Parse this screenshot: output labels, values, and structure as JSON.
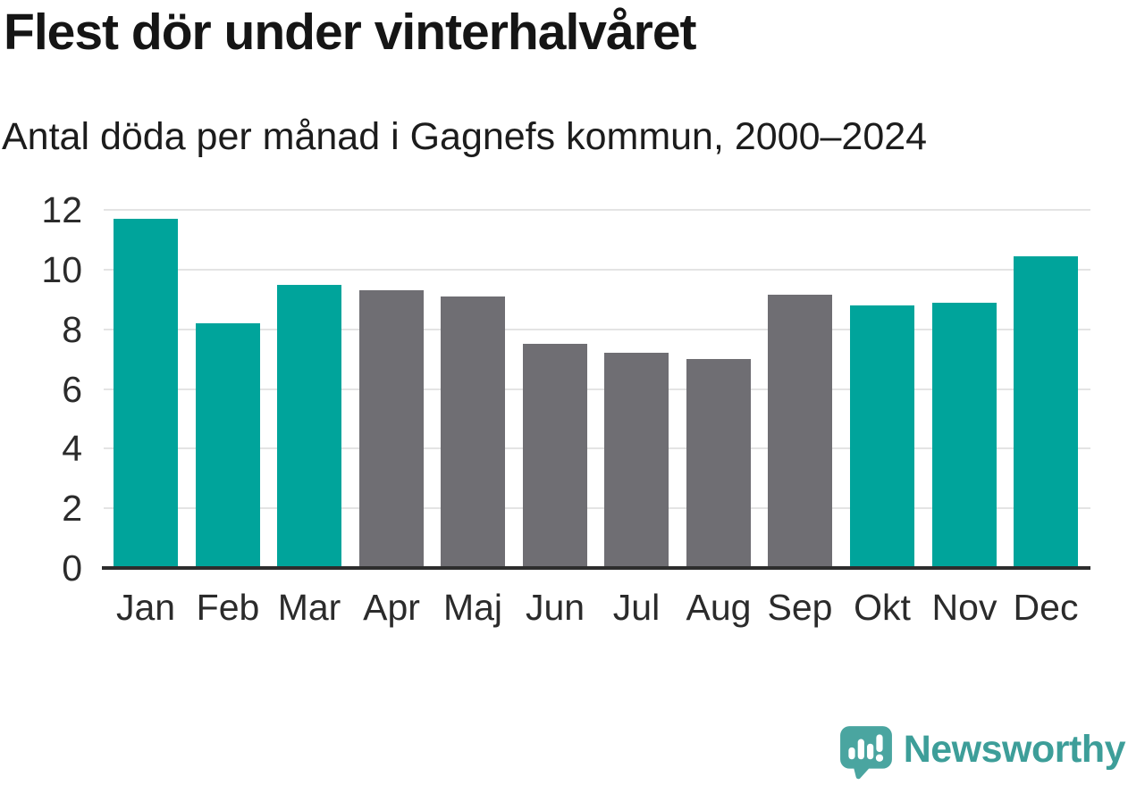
{
  "header": {
    "title": "Flest dör under vinterhalvåret",
    "subtitle": "Antal döda per månad i Gagnefs kommun, 2000–2024"
  },
  "chart_data": {
    "type": "bar",
    "title": "Flest dör under vinterhalvåret",
    "subtitle": "Antal döda per månad i Gagnefs kommun, 2000–2024",
    "categories": [
      "Jan",
      "Feb",
      "Mar",
      "Apr",
      "Maj",
      "Jun",
      "Jul",
      "Aug",
      "Sep",
      "Okt",
      "Nov",
      "Dec"
    ],
    "values": [
      11.7,
      8.2,
      9.5,
      9.3,
      9.1,
      7.5,
      7.2,
      7.0,
      9.15,
      8.8,
      8.9,
      10.45
    ],
    "highlighted_categories": [
      "Jan",
      "Feb",
      "Mar",
      "Okt",
      "Nov",
      "Dec"
    ],
    "xlabel": "",
    "ylabel": "",
    "ylim": [
      0,
      12
    ],
    "yticks": [
      0,
      2,
      4,
      6,
      8,
      10,
      12
    ],
    "grid": "horizontal",
    "legend": "none",
    "colors": {
      "highlight_bar": "#00a49b",
      "default_bar": "#6f6e73",
      "gridline": "#e4e4e4",
      "axis_line": "#2d2d2d",
      "tick_label": "#2b2b2b"
    }
  },
  "footer": {
    "brand": "Newsworthy",
    "brand_color": "#3d9e99",
    "logo_icon": "newsworthy-speech-bubble-chart-icon",
    "logo_icon_color": "#4aa5a0"
  }
}
